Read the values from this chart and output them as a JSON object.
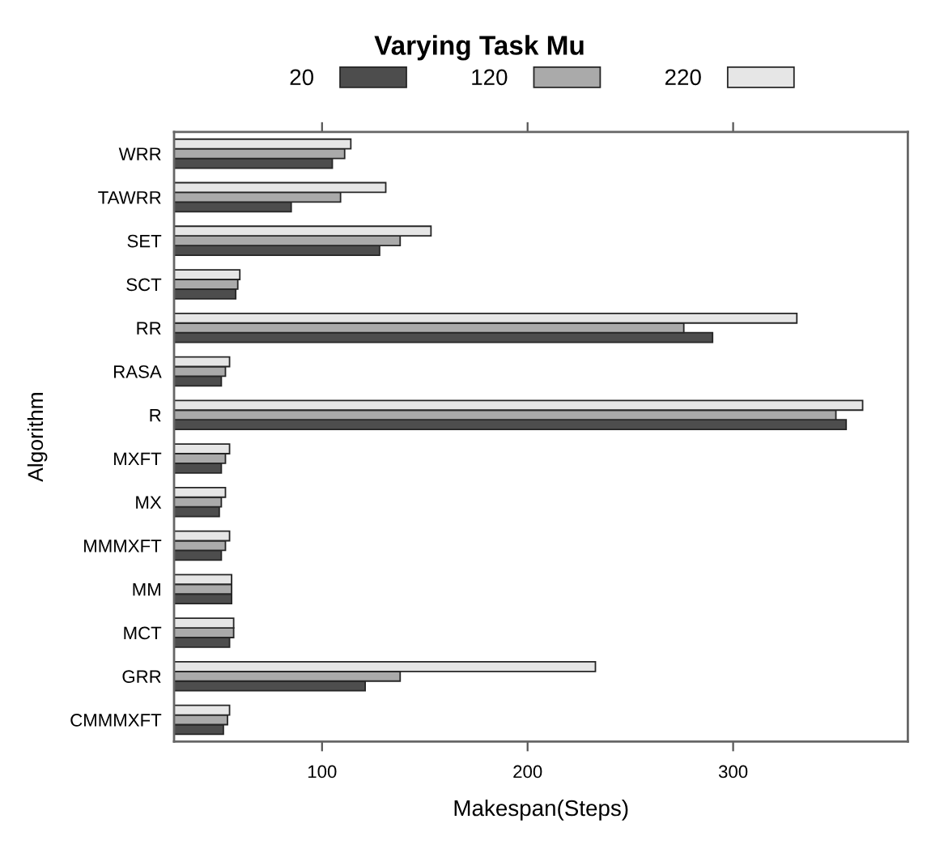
{
  "chart_data": {
    "type": "bar",
    "orientation": "horizontal",
    "legend_title": "Varying Task Mu",
    "xlabel": "Makespan(Steps)",
    "ylabel": "Algorithm",
    "categories": [
      "WRR",
      "TAWRR",
      "SET",
      "SCT",
      "RR",
      "RASA",
      "R",
      "MXFT",
      "MX",
      "MMMXFT",
      "MM",
      "MCT",
      "GRR",
      "CMMMXFT"
    ],
    "series": [
      {
        "name": "20",
        "color": "#4d4d4d",
        "values": [
          105,
          85,
          128,
          58,
          290,
          51,
          355,
          51,
          50,
          51,
          56,
          55,
          121,
          52
        ]
      },
      {
        "name": "120",
        "color": "#aaaaaa",
        "values": [
          111,
          109,
          138,
          59,
          276,
          53,
          350,
          53,
          51,
          53,
          56,
          57,
          138,
          54
        ]
      },
      {
        "name": "220",
        "color": "#e6e6e6",
        "values": [
          114,
          131,
          153,
          60,
          331,
          55,
          363,
          55,
          53,
          55,
          56,
          57,
          233,
          55
        ]
      }
    ],
    "xlim": [
      28,
      385
    ],
    "xticks": [
      100,
      200,
      300
    ],
    "legend": "top"
  }
}
